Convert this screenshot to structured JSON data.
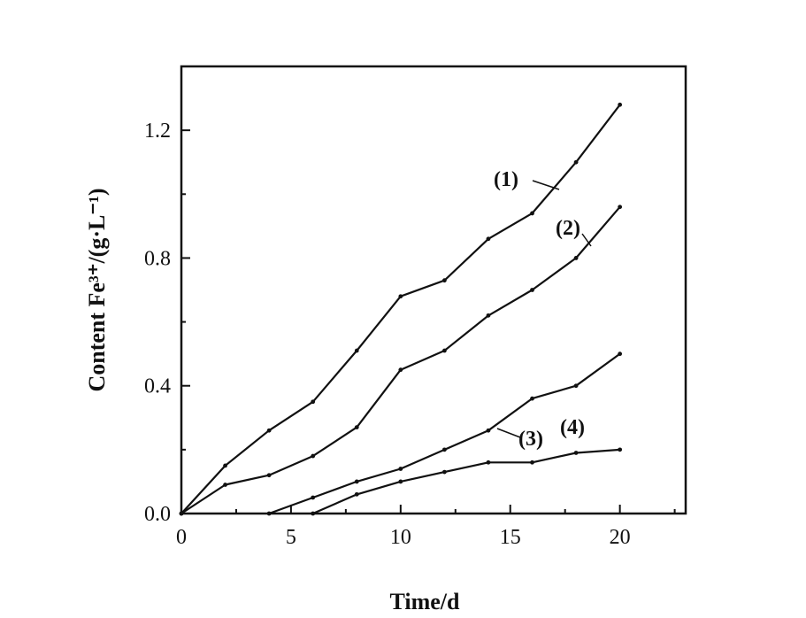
{
  "chart_data": {
    "type": "line",
    "xlabel": "Time/d",
    "ylabel": "Content Fe³⁺/(g·L⁻¹)",
    "xlim": [
      0,
      23
    ],
    "ylim": [
      0,
      1.4
    ],
    "xticks": [
      0,
      5,
      10,
      15,
      20
    ],
    "xtick_labels": [
      "0",
      "5",
      "10",
      "15",
      "20"
    ],
    "yticks": [
      0,
      0.4,
      0.8,
      1.2
    ],
    "ytick_labels": [
      "0.0",
      "0.4",
      "0.8",
      "1.2"
    ],
    "grid": false,
    "legend": "inline labels",
    "series": [
      {
        "name": "(1)",
        "x": [
          0,
          2,
          4,
          6,
          8,
          10,
          12,
          14,
          16,
          18,
          20
        ],
        "values": [
          0,
          0.15,
          0.26,
          0.35,
          0.51,
          0.68,
          0.73,
          0.86,
          0.94,
          1.1,
          1.28
        ]
      },
      {
        "name": "(2)",
        "x": [
          0,
          2,
          4,
          6,
          8,
          10,
          12,
          14,
          16,
          18,
          20
        ],
        "values": [
          0,
          0.09,
          0.12,
          0.18,
          0.27,
          0.45,
          0.51,
          0.62,
          0.7,
          0.8,
          0.96
        ]
      },
      {
        "name": "(3)",
        "x": [
          4,
          6,
          8,
          10,
          12,
          14,
          16,
          18,
          20
        ],
        "values": [
          0,
          0.05,
          0.1,
          0.14,
          0.2,
          0.26,
          0.36,
          0.4,
          0.5
        ]
      },
      {
        "name": "(4)",
        "x": [
          6,
          8,
          10,
          12,
          14,
          16,
          18,
          20
        ],
        "values": [
          0,
          0.06,
          0.1,
          0.13,
          0.16,
          0.16,
          0.19,
          0.2
        ]
      }
    ]
  }
}
